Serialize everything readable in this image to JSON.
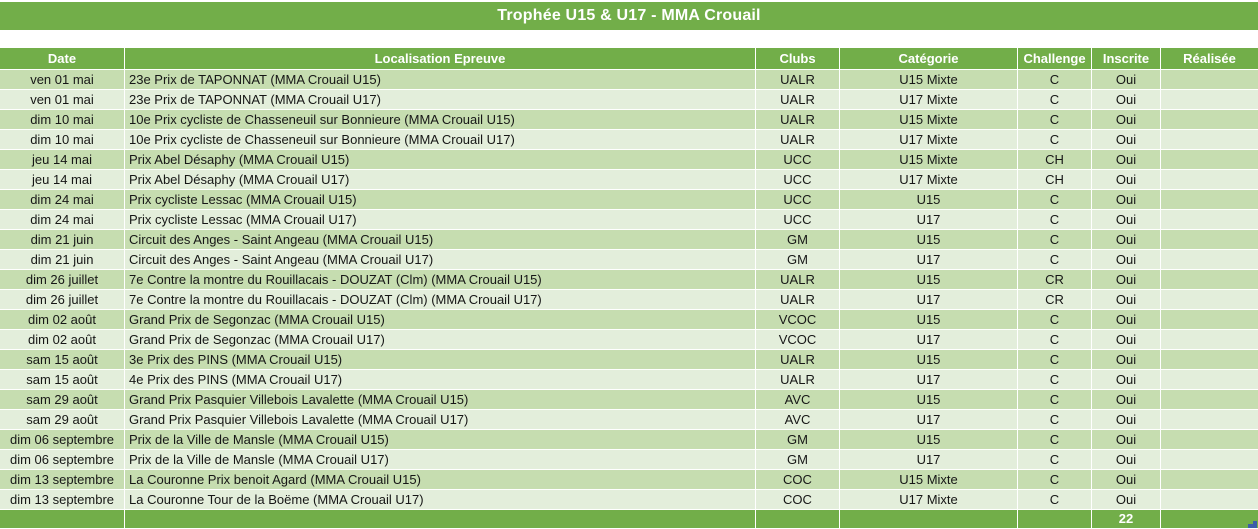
{
  "title": "Trophée U15 & U17 - MMA Crouail",
  "colors": {
    "green": "#72AE49",
    "band_dark": "#C6DDB0",
    "band_light": "#E3EEDB",
    "text": "#161616",
    "handle_blue": "#3C5EA9"
  },
  "table": {
    "columns": [
      {
        "label": "Date",
        "align": "center"
      },
      {
        "label": "Localisation Epreuve",
        "align": "left"
      },
      {
        "label": "Clubs",
        "align": "center"
      },
      {
        "label": "Catégorie",
        "align": "center"
      },
      {
        "label": "Challenge",
        "align": "center"
      },
      {
        "label": "Inscrite",
        "align": "center"
      },
      {
        "label": "Réalisée",
        "align": "center"
      }
    ],
    "rows": [
      [
        "ven 01 mai",
        "23e Prix de TAPONNAT (MMA Crouail U15)",
        "UALR",
        "U15 Mixte",
        "C",
        "Oui",
        ""
      ],
      [
        "ven 01 mai",
        "23e Prix de TAPONNAT (MMA Crouail U17)",
        "UALR",
        "U17 Mixte",
        "C",
        "Oui",
        ""
      ],
      [
        "dim 10 mai",
        "10e Prix cycliste de Chasseneuil sur Bonnieure (MMA Crouail U15)",
        "UALR",
        "U15 Mixte",
        "C",
        "Oui",
        ""
      ],
      [
        "dim 10 mai",
        "10e Prix cycliste de Chasseneuil sur Bonnieure (MMA Crouail U17)",
        "UALR",
        "U17 Mixte",
        "C",
        "Oui",
        ""
      ],
      [
        "jeu 14 mai",
        "Prix Abel Désaphy (MMA Crouail U15)",
        "UCC",
        "U15 Mixte",
        "CH",
        "Oui",
        ""
      ],
      [
        "jeu 14 mai",
        "Prix Abel Désaphy (MMA Crouail U17)",
        "UCC",
        "U17 Mixte",
        "CH",
        "Oui",
        ""
      ],
      [
        "dim 24 mai",
        "Prix cycliste Lessac (MMA Crouail U15)",
        "UCC",
        "U15",
        "C",
        "Oui",
        ""
      ],
      [
        "dim 24 mai",
        "Prix cycliste Lessac (MMA Crouail U17)",
        "UCC",
        "U17",
        "C",
        "Oui",
        ""
      ],
      [
        "dim 21 juin",
        "Circuit des Anges - Saint Angeau (MMA Crouail U15)",
        "GM",
        "U15",
        "C",
        "Oui",
        ""
      ],
      [
        "dim 21 juin",
        "Circuit des Anges - Saint Angeau (MMA Crouail U17)",
        "GM",
        "U17",
        "C",
        "Oui",
        ""
      ],
      [
        "dim 26 juillet",
        "7e Contre la montre du Rouillacais - DOUZAT (Clm) (MMA Crouail U15)",
        "UALR",
        "U15",
        "CR",
        "Oui",
        ""
      ],
      [
        "dim 26 juillet",
        "7e Contre la montre du Rouillacais - DOUZAT (Clm) (MMA Crouail U17)",
        "UALR",
        "U17",
        "CR",
        "Oui",
        ""
      ],
      [
        "dim 02 août",
        "Grand Prix de Segonzac (MMA Crouail U15)",
        "VCOC",
        "U15",
        "C",
        "Oui",
        ""
      ],
      [
        "dim 02 août",
        "Grand Prix de Segonzac (MMA Crouail U17)",
        "VCOC",
        "U17",
        "C",
        "Oui",
        ""
      ],
      [
        "sam 15 août",
        "3e Prix des PINS (MMA Crouail U15)",
        "UALR",
        "U15",
        "C",
        "Oui",
        ""
      ],
      [
        "sam 15 août",
        "4e Prix des PINS (MMA Crouail U17)",
        "UALR",
        "U17",
        "C",
        "Oui",
        ""
      ],
      [
        "sam 29 août",
        "Grand Prix Pasquier Villebois Lavalette (MMA Crouail U15)",
        "AVC",
        "U15",
        "C",
        "Oui",
        ""
      ],
      [
        "sam 29 août",
        "Grand Prix Pasquier Villebois Lavalette (MMA Crouail U17)",
        "AVC",
        "U17",
        "C",
        "Oui",
        ""
      ],
      [
        "dim 06 septembre",
        "Prix de la Ville de Mansle (MMA Crouail U15)",
        "GM",
        "U15",
        "C",
        "Oui",
        ""
      ],
      [
        "dim 06 septembre",
        "Prix de la Ville de Mansle (MMA Crouail U17)",
        "GM",
        "U17",
        "C",
        "Oui",
        ""
      ],
      [
        "dim 13 septembre",
        "La Couronne Prix benoit Agard (MMA Crouail U15)",
        "COC",
        "U15 Mixte",
        "C",
        "Oui",
        ""
      ],
      [
        "dim 13 septembre",
        "La Couronne Tour de la Boëme (MMA Crouail U17)",
        "COC",
        "U17 Mixte",
        "C",
        "Oui",
        ""
      ]
    ],
    "footer_values": [
      "",
      "",
      "",
      "",
      "",
      "22",
      ""
    ]
  }
}
